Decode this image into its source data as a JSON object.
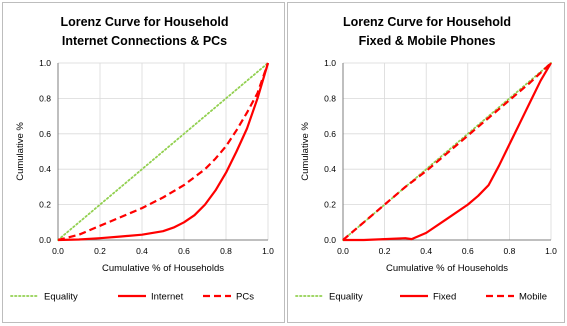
{
  "colors": {
    "equality": "#92d050",
    "curve": "#ff0000",
    "axis": "#7f7f7f",
    "grid": "#d9d9d9"
  },
  "chart_data": [
    {
      "type": "line",
      "title_lines": [
        "Lorenz Curve for Household",
        "Internet Connections & PCs"
      ],
      "xlabel": "Cumulative % of Households",
      "ylabel": "Cumulative %",
      "xlim": [
        0,
        1
      ],
      "ylim": [
        0,
        1
      ],
      "x_ticks": [
        "0.0",
        "0.2",
        "0.4",
        "0.6",
        "0.8",
        "1.0"
      ],
      "y_ticks": [
        "0.0",
        "0.2",
        "0.4",
        "0.6",
        "0.8",
        "1.0"
      ],
      "grid": true,
      "legend_position": "bottom",
      "series": [
        {
          "name": "Equality",
          "style": "dotted",
          "color": "#92d050",
          "x": [
            0,
            1
          ],
          "y": [
            0,
            1
          ]
        },
        {
          "name": "Internet",
          "style": "solid",
          "color": "#ff0000",
          "x": [
            0,
            0.1,
            0.2,
            0.3,
            0.4,
            0.5,
            0.55,
            0.6,
            0.65,
            0.7,
            0.75,
            0.8,
            0.85,
            0.9,
            0.95,
            1.0
          ],
          "y": [
            0,
            0.003,
            0.01,
            0.02,
            0.03,
            0.05,
            0.07,
            0.1,
            0.14,
            0.2,
            0.28,
            0.38,
            0.5,
            0.63,
            0.8,
            1.0
          ]
        },
        {
          "name": "PCs",
          "style": "dashed",
          "color": "#ff0000",
          "x": [
            0,
            0.1,
            0.2,
            0.3,
            0.4,
            0.5,
            0.6,
            0.7,
            0.75,
            0.8,
            0.85,
            0.9,
            0.95,
            1.0
          ],
          "y": [
            0,
            0.03,
            0.08,
            0.13,
            0.18,
            0.24,
            0.31,
            0.4,
            0.46,
            0.53,
            0.62,
            0.72,
            0.83,
            1.0
          ]
        }
      ]
    },
    {
      "type": "line",
      "title_lines": [
        "Lorenz Curve for Household",
        "Fixed & Mobile Phones"
      ],
      "xlabel": "Cumulative % of Households",
      "ylabel": "Cumulative %",
      "xlim": [
        0,
        1
      ],
      "ylim": [
        0,
        1
      ],
      "x_ticks": [
        "0.0",
        "0.2",
        "0.4",
        "0.6",
        "0.8",
        "1.0"
      ],
      "y_ticks": [
        "0.0",
        "0.2",
        "0.4",
        "0.6",
        "0.8",
        "1.0"
      ],
      "grid": true,
      "legend_position": "bottom",
      "series": [
        {
          "name": "Equality",
          "style": "dotted",
          "color": "#92d050",
          "x": [
            0,
            1
          ],
          "y": [
            0,
            1
          ]
        },
        {
          "name": "Fixed",
          "style": "solid",
          "color": "#ff0000",
          "x": [
            0,
            0.1,
            0.2,
            0.3,
            0.33,
            0.4,
            0.5,
            0.6,
            0.65,
            0.7,
            0.75,
            0.8,
            0.85,
            0.9,
            0.95,
            1.0
          ],
          "y": [
            0,
            0,
            0.005,
            0.01,
            0.005,
            0.04,
            0.12,
            0.2,
            0.25,
            0.31,
            0.42,
            0.54,
            0.66,
            0.78,
            0.9,
            1.0
          ]
        },
        {
          "name": "Mobile",
          "style": "dashed",
          "color": "#ff0000",
          "x": [
            0,
            0.1,
            0.2,
            0.3,
            0.4,
            0.5,
            0.6,
            0.7,
            0.8,
            0.9,
            1.0
          ],
          "y": [
            0,
            0.1,
            0.2,
            0.3,
            0.39,
            0.49,
            0.59,
            0.69,
            0.79,
            0.89,
            1.0
          ]
        }
      ]
    }
  ]
}
